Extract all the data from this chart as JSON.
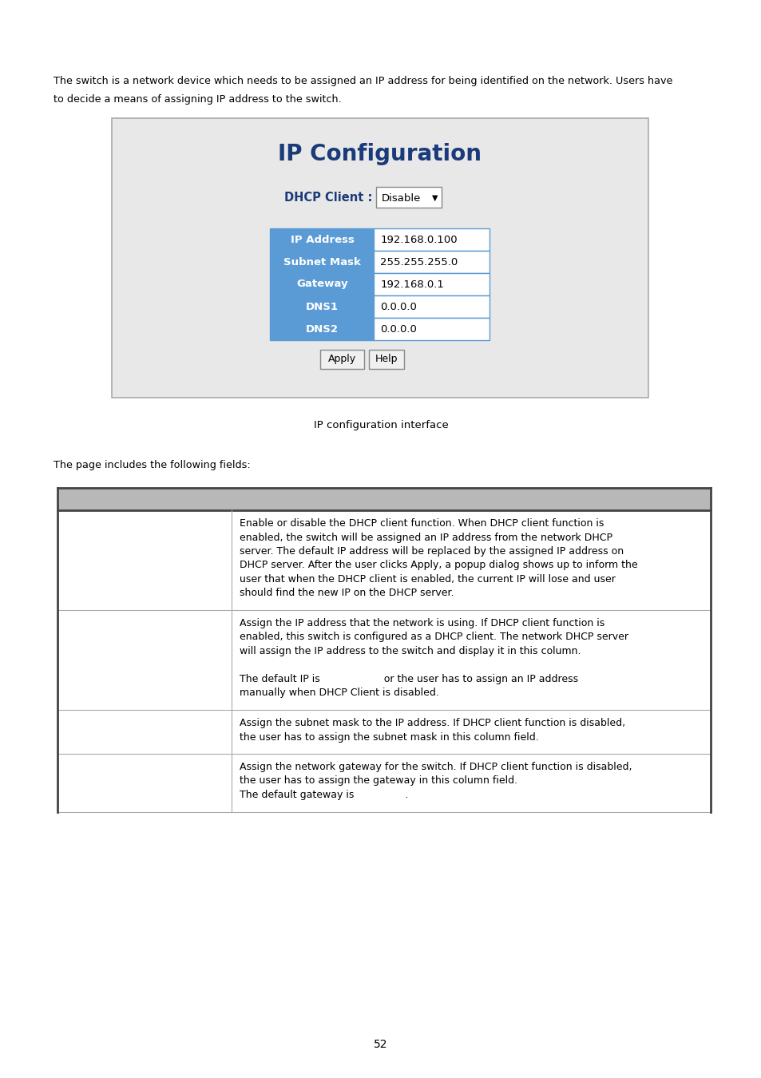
{
  "bg_color": "#ffffff",
  "intro_text_line1": "The switch is a network device which needs to be assigned an IP address for being identified on the network. Users have",
  "intro_text_line2": "to decide a means of assigning IP address to the switch.",
  "ui_title": "IP Configuration",
  "ui_title_color": "#1a3a7a",
  "dhcp_label": "DHCP Client :",
  "dhcp_value": "Disable",
  "table_fields": [
    "IP Address",
    "Subnet Mask",
    "Gateway",
    "DNS1",
    "DNS2"
  ],
  "table_values": [
    "192.168.0.100",
    "255.255.255.0",
    "192.168.0.1",
    "0.0.0.0",
    "0.0.0.0"
  ],
  "table_header_bg": "#5b9bd5",
  "table_value_bg": "#ffffff",
  "table_border": "#5b9bd5",
  "caption_text": "IP configuration interface",
  "fields_intro": "The page includes the following fields:",
  "desc_rows": [
    {
      "right_text": "Enable or disable the DHCP client function. When DHCP client function is\nenabled, the switch will be assigned an IP address from the network DHCP\nserver. The default IP address will be replaced by the assigned IP address on\nDHCP server. After the user clicks Apply, a popup dialog shows up to inform the\nuser that when the DHCP client is enabled, the current IP will lose and user\nshould find the new IP on the DHCP server."
    },
    {
      "right_text": "Assign the IP address that the network is using. If DHCP client function is\nenabled, this switch is configured as a DHCP client. The network DHCP server\nwill assign the IP address to the switch and display it in this column.\n\nThe default IP is                    or the user has to assign an IP address\nmanually when DHCP Client is disabled."
    },
    {
      "right_text": "Assign the subnet mask to the IP address. If DHCP client function is disabled,\nthe user has to assign the subnet mask in this column field."
    },
    {
      "right_text": "Assign the network gateway for the switch. If DHCP client function is disabled,\nthe user has to assign the gateway in this column field.\nThe default gateway is                ."
    }
  ],
  "page_number": "52"
}
